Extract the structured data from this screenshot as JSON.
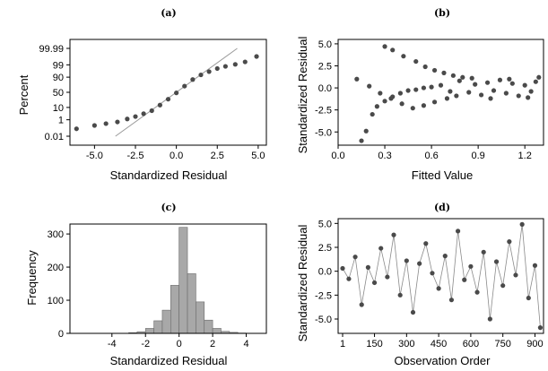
{
  "colors": {
    "marker": "#4a4a4a",
    "bar_fill": "#a8a8a8",
    "bar_edge": "#6a6a6a",
    "fit_line": "#9a9a9a",
    "connector": "#8a8a8a"
  },
  "chart_data": [
    {
      "type": "scatter",
      "title": "(a)",
      "xlabel": "Standardized Residual",
      "ylabel": "Percent",
      "xlim": [
        -6.5,
        5.5
      ],
      "xticks": [
        "-5.0",
        "-2.5",
        "0.0",
        "2.5",
        "5.0"
      ],
      "y_scale": "normal-probability",
      "yticks": [
        "0.01",
        "1",
        "10",
        "50",
        "90",
        "99",
        "99.99"
      ],
      "fit_line": [
        [
          -3.72,
          0.01
        ],
        [
          3.72,
          99.99
        ]
      ],
      "points": [
        [
          -6.1,
          0.1
        ],
        [
          -5.0,
          0.25
        ],
        [
          -4.3,
          0.4
        ],
        [
          -3.6,
          0.6
        ],
        [
          -3.0,
          1.2
        ],
        [
          -2.5,
          2.0
        ],
        [
          -2.0,
          3.5
        ],
        [
          -1.5,
          6
        ],
        [
          -1.0,
          14
        ],
        [
          -0.5,
          28
        ],
        [
          0.0,
          48
        ],
        [
          0.5,
          70
        ],
        [
          1.0,
          86
        ],
        [
          1.5,
          93
        ],
        [
          2.0,
          96
        ],
        [
          2.5,
          97.8
        ],
        [
          3.0,
          98.6
        ],
        [
          3.6,
          99.1
        ],
        [
          4.2,
          99.5
        ],
        [
          4.9,
          99.88
        ]
      ]
    },
    {
      "type": "scatter",
      "title": "(b)",
      "xlabel": "Fitted Value",
      "ylabel": "Standardized Residual",
      "xlim": [
        0.0,
        1.32
      ],
      "ylim": [
        -6.5,
        5.5
      ],
      "xticks": [
        "0.0",
        "0.3",
        "0.6",
        "0.9",
        "1.2"
      ],
      "yticks": [
        "5.0",
        "2.5",
        "0.0",
        "-2.5",
        "-5.0"
      ],
      "points": [
        [
          0.15,
          -6.0
        ],
        [
          0.18,
          -4.9
        ],
        [
          0.22,
          -3.0
        ],
        [
          0.25,
          -2.1
        ],
        [
          0.3,
          -1.5
        ],
        [
          0.35,
          -1.0
        ],
        [
          0.4,
          -0.6
        ],
        [
          0.45,
          -0.3
        ],
        [
          0.5,
          -0.2
        ],
        [
          0.55,
          0.0
        ],
        [
          0.6,
          0.1
        ],
        [
          0.3,
          4.7
        ],
        [
          0.35,
          4.3
        ],
        [
          0.42,
          3.6
        ],
        [
          0.5,
          3.0
        ],
        [
          0.56,
          2.4
        ],
        [
          0.62,
          2.0
        ],
        [
          0.68,
          1.7
        ],
        [
          0.74,
          1.4
        ],
        [
          0.8,
          1.2
        ],
        [
          0.12,
          1.0
        ],
        [
          0.2,
          0.2
        ],
        [
          0.27,
          -0.6
        ],
        [
          0.34,
          -1.2
        ],
        [
          0.41,
          -1.8
        ],
        [
          0.48,
          -2.3
        ],
        [
          0.55,
          -2.0
        ],
        [
          0.62,
          -1.6
        ],
        [
          0.7,
          -1.2
        ],
        [
          0.66,
          0.3
        ],
        [
          0.72,
          -0.4
        ],
        [
          0.78,
          0.8
        ],
        [
          0.84,
          -0.5
        ],
        [
          0.88,
          0.4
        ],
        [
          0.92,
          -0.8
        ],
        [
          0.96,
          0.6
        ],
        [
          1.0,
          -0.3
        ],
        [
          1.04,
          0.9
        ],
        [
          1.08,
          -0.6
        ],
        [
          1.12,
          0.5
        ],
        [
          1.16,
          -0.9
        ],
        [
          1.2,
          0.3
        ],
        [
          1.24,
          -0.4
        ],
        [
          1.27,
          0.7
        ],
        [
          1.29,
          1.2
        ],
        [
          0.76,
          -0.9
        ],
        [
          0.86,
          1.1
        ],
        [
          0.98,
          -1.2
        ],
        [
          1.1,
          1.0
        ],
        [
          1.22,
          -1.1
        ]
      ]
    },
    {
      "type": "bar",
      "title": "(c)",
      "xlabel": "Standardized Residual",
      "ylabel": "Frequency",
      "xlim": [
        -6.5,
        5.2
      ],
      "ylim": [
        0,
        330
      ],
      "xticks": [
        "-4",
        "-2",
        "0",
        "2",
        "4"
      ],
      "yticks": [
        "0",
        "100",
        "200",
        "300"
      ],
      "bin_width": 0.5,
      "bin_starts": [
        -3.0,
        -2.5,
        -2.0,
        -1.5,
        -1.0,
        -0.5,
        0.0,
        0.5,
        1.0,
        1.5,
        2.0,
        2.5,
        3.0,
        3.5
      ],
      "values": [
        2,
        5,
        15,
        38,
        70,
        145,
        320,
        180,
        95,
        40,
        15,
        6,
        3,
        1
      ]
    },
    {
      "type": "line",
      "title": "(d)",
      "xlabel": "Observation Order",
      "ylabel": "Standardized Residual",
      "xlim": [
        -20,
        940
      ],
      "ylim": [
        -6.5,
        5.5
      ],
      "xticks": [
        "1",
        "150",
        "300",
        "450",
        "600",
        "750",
        "900"
      ],
      "yticks": [
        "5.0",
        "2.5",
        "0.0",
        "-2.5",
        "-5.0"
      ],
      "points": [
        [
          1,
          0.3
        ],
        [
          30,
          -0.8
        ],
        [
          60,
          1.5
        ],
        [
          90,
          -3.5
        ],
        [
          120,
          0.4
        ],
        [
          150,
          -1.2
        ],
        [
          180,
          2.4
        ],
        [
          210,
          -0.6
        ],
        [
          240,
          3.8
        ],
        [
          270,
          -2.5
        ],
        [
          300,
          1.1
        ],
        [
          330,
          -4.3
        ],
        [
          360,
          0.8
        ],
        [
          390,
          2.9
        ],
        [
          420,
          -0.2
        ],
        [
          450,
          -1.8
        ],
        [
          480,
          1.6
        ],
        [
          510,
          -3.0
        ],
        [
          540,
          4.2
        ],
        [
          570,
          -0.9
        ],
        [
          600,
          0.5
        ],
        [
          630,
          -2.2
        ],
        [
          660,
          2.0
        ],
        [
          690,
          -5.0
        ],
        [
          720,
          1.0
        ],
        [
          750,
          -1.5
        ],
        [
          780,
          3.1
        ],
        [
          810,
          -0.4
        ],
        [
          840,
          4.9
        ],
        [
          870,
          -2.8
        ],
        [
          900,
          0.6
        ],
        [
          925,
          -5.9
        ]
      ]
    }
  ]
}
